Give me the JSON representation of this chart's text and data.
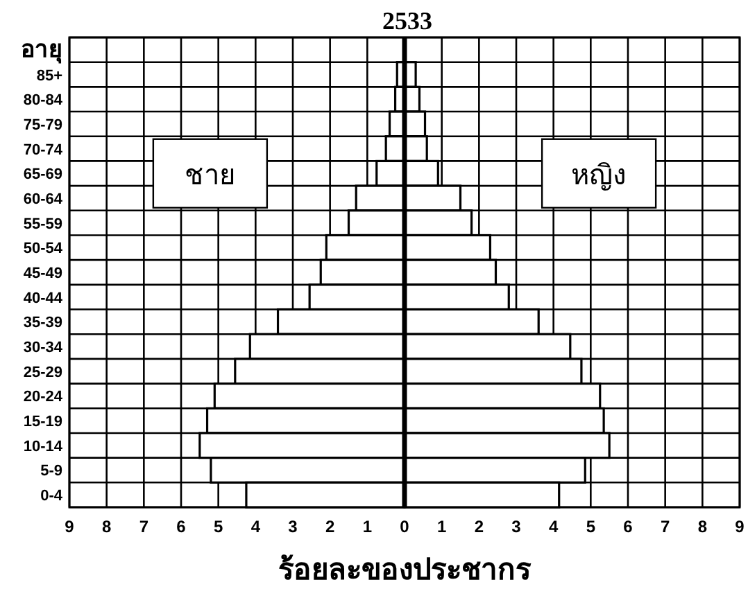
{
  "chart_data": {
    "type": "bar",
    "orientation": "horizontal",
    "stacked": true,
    "title": "2533",
    "xlabel": "ร้อยละของประชากร",
    "ylabel": "อายุ",
    "categories": [
      null,
      "85+",
      "80-84",
      "75-79",
      "70-74",
      "65-69",
      "60-64",
      "55-59",
      "50-54",
      "45-49",
      "40-44",
      "35-39",
      "30-34",
      "25-29",
      "20-24",
      "15-19",
      "10-14",
      "5-9",
      "0-4"
    ],
    "series": [
      {
        "name": "ชาย",
        "color": "#ffffff",
        "values": [
          null,
          -0.2,
          -0.25,
          -0.4,
          -0.5,
          -0.75,
          -1.3,
          -1.5,
          -2.1,
          -2.25,
          -2.55,
          -3.4,
          -4.15,
          -4.55,
          -5.1,
          -5.3,
          -5.5,
          -5.2,
          -4.25
        ]
      },
      {
        "name": "หญิง",
        "color": "#ffffff",
        "values": [
          null,
          0.3,
          0.4,
          0.55,
          0.6,
          0.9,
          1.5,
          1.8,
          2.3,
          2.45,
          2.8,
          3.6,
          4.45,
          4.75,
          5.25,
          5.35,
          5.5,
          4.85,
          4.15
        ]
      }
    ],
    "xlim": [
      -9,
      9
    ],
    "xticks": [
      {
        "value": -9,
        "label": "9"
      },
      {
        "value": -8,
        "label": "8"
      },
      {
        "value": -7,
        "label": "7"
      },
      {
        "value": -6,
        "label": "6"
      },
      {
        "value": -5,
        "label": "5"
      },
      {
        "value": -4,
        "label": "4"
      },
      {
        "value": -3,
        "label": "3"
      },
      {
        "value": -2,
        "label": "2"
      },
      {
        "value": -1,
        "label": "1"
      },
      0,
      1,
      2,
      3,
      4,
      5,
      6,
      7,
      8,
      9
    ],
    "grid": true
  }
}
